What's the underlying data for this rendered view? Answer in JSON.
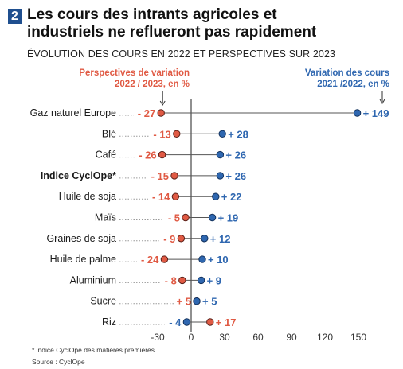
{
  "header": {
    "number": "2",
    "title_line1": "Les cours des intrants agricoles et",
    "title_line2": "industriels ne reflueront pas rapidement",
    "subtitle": "ÉVOLUTION DES COURS EN 2022 ET PERSPECTIVES SUR 2023"
  },
  "legend": {
    "persp_line1": "Perspectives de variation",
    "persp_line2": "2022 / 2023, en %",
    "var_line1": "Variation des cours",
    "var_line2": "2021 /2022, en %"
  },
  "colors": {
    "perspective": "#e05a44",
    "variation": "#2f67b0",
    "connector": "#555555",
    "dots": "#9a9a9a"
  },
  "chart_data": {
    "type": "dot",
    "categories": [
      "Gaz naturel Europe",
      "Blé",
      "Café",
      "Indice CyclOpe*",
      "Huile de soja",
      "Maïs",
      "Graines de soja",
      "Huile de palme",
      "Aluminium",
      "Sucre",
      "Riz"
    ],
    "bold_category": "Indice CyclOpe*",
    "series": [
      {
        "name": "Perspectives de variation 2022 / 2023, en %",
        "values": [
          -27,
          -13,
          -26,
          -15,
          -14,
          -5,
          -9,
          -24,
          -8,
          5,
          17
        ],
        "labels": [
          "- 27",
          "- 13",
          "- 26",
          "- 15",
          "- 14",
          "- 5",
          "- 9",
          "- 24",
          "- 8",
          "+ 5",
          "+ 17"
        ]
      },
      {
        "name": "Variation des cours 2021 /2022, en %",
        "values": [
          149,
          28,
          26,
          26,
          22,
          19,
          12,
          10,
          9,
          5,
          -4
        ],
        "labels": [
          "+ 149",
          "+ 28",
          "+ 26",
          "+ 26",
          "+ 22",
          "+ 19",
          "+ 12",
          "+ 10",
          "+ 9",
          "+ 5",
          "- 4"
        ]
      }
    ],
    "x_ticks": [
      "-30",
      "0",
      "30",
      "60",
      "90",
      "120",
      "150"
    ],
    "xlim": [
      -30,
      150
    ]
  },
  "footer": {
    "note": "* indice CyclOpe des matières premieres",
    "source": "Source : CyclOpe"
  }
}
